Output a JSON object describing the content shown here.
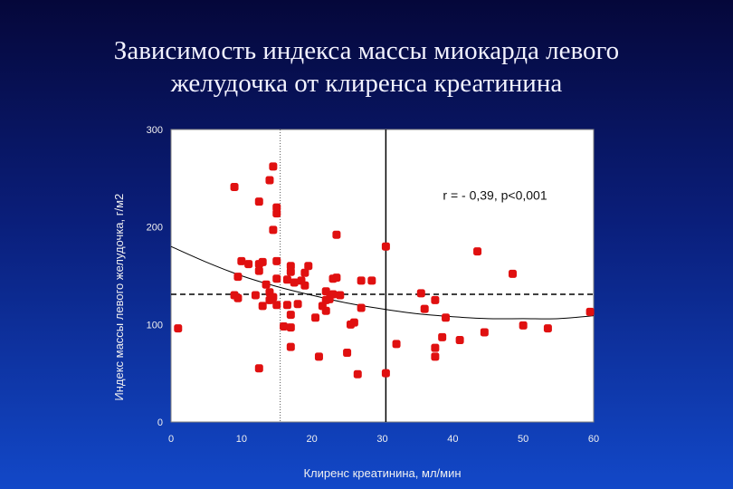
{
  "slide": {
    "title_line1": "Зависимость индекса массы миокарда левого",
    "title_line2": "желудочка от клиренса креатинина"
  },
  "colors": {
    "background_top": "#05073a",
    "background_bottom": "#1248c8",
    "plot_background": "#ffffff",
    "point": "#e01010",
    "lines": "#000000"
  },
  "chart_data": {
    "type": "scatter",
    "title": "",
    "xlabel": "Клиренс креатинина, мл/мин",
    "ylabel": "Индекс массы левого желудочка, г/м2",
    "xlim": [
      0,
      60
    ],
    "ylim": [
      0,
      300
    ],
    "x_ticks": [
      0,
      10,
      20,
      30,
      40,
      50,
      60
    ],
    "y_ticks": [
      0,
      100,
      200,
      300
    ],
    "grid": false,
    "annotation": "r = - 0,39, p<0,001",
    "reference_lines": {
      "dashed_horizontal_y": 131,
      "solid_vertical_x": 30.5,
      "dotted_vertical_x": 15.5
    },
    "trend_curve": [
      [
        0,
        180
      ],
      [
        5,
        164
      ],
      [
        10,
        150
      ],
      [
        15,
        139
      ],
      [
        20,
        130
      ],
      [
        25,
        122
      ],
      [
        30,
        116
      ],
      [
        35,
        111
      ],
      [
        40,
        108
      ],
      [
        45,
        106
      ],
      [
        50,
        106
      ],
      [
        55,
        106
      ],
      [
        60,
        109
      ]
    ],
    "points": [
      [
        1,
        96
      ],
      [
        9,
        241
      ],
      [
        9.5,
        149
      ],
      [
        9.5,
        127
      ],
      [
        9,
        130
      ],
      [
        10,
        165
      ],
      [
        11,
        162
      ],
      [
        12,
        130
      ],
      [
        12.5,
        155
      ],
      [
        12.5,
        162
      ],
      [
        12.5,
        55
      ],
      [
        12.5,
        226
      ],
      [
        13,
        164
      ],
      [
        13,
        119
      ],
      [
        13.5,
        141
      ],
      [
        14,
        133
      ],
      [
        14,
        125
      ],
      [
        14,
        248
      ],
      [
        14.5,
        262
      ],
      [
        14.5,
        128
      ],
      [
        14.5,
        197
      ],
      [
        15,
        214
      ],
      [
        15,
        220
      ],
      [
        15,
        147
      ],
      [
        15,
        165
      ],
      [
        15,
        120
      ],
      [
        16,
        98
      ],
      [
        16.5,
        146
      ],
      [
        16.5,
        120
      ],
      [
        17,
        77
      ],
      [
        17,
        110
      ],
      [
        17,
        97
      ],
      [
        17,
        154
      ],
      [
        17,
        160
      ],
      [
        17.5,
        143
      ],
      [
        18,
        121
      ],
      [
        18.5,
        145
      ],
      [
        19,
        153
      ],
      [
        19,
        140
      ],
      [
        19.5,
        160
      ],
      [
        20.5,
        107
      ],
      [
        21,
        67
      ],
      [
        21.5,
        119
      ],
      [
        22,
        134
      ],
      [
        22,
        114
      ],
      [
        22,
        125
      ],
      [
        22.5,
        126
      ],
      [
        23,
        147
      ],
      [
        23,
        131
      ],
      [
        23.5,
        148
      ],
      [
        23.5,
        192
      ],
      [
        24,
        130
      ],
      [
        25,
        71
      ],
      [
        25.5,
        100
      ],
      [
        26,
        102
      ],
      [
        26.5,
        49
      ],
      [
        27,
        145
      ],
      [
        27,
        117
      ],
      [
        28.5,
        145
      ],
      [
        30.5,
        180
      ],
      [
        30.5,
        50
      ],
      [
        32,
        80
      ],
      [
        35.5,
        132
      ],
      [
        36,
        116
      ],
      [
        37.5,
        67
      ],
      [
        37.5,
        76
      ],
      [
        37.5,
        125
      ],
      [
        38.5,
        87
      ],
      [
        39,
        107
      ],
      [
        41,
        84
      ],
      [
        43.5,
        175
      ],
      [
        44.5,
        92
      ],
      [
        48.5,
        152
      ],
      [
        50,
        99
      ],
      [
        53.5,
        96
      ],
      [
        59.5,
        113
      ]
    ]
  }
}
